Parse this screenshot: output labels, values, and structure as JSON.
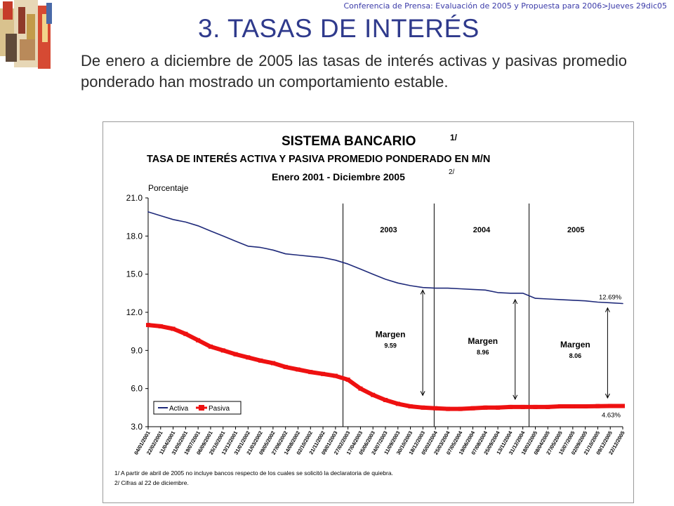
{
  "header": {
    "conference_note": "Conferencia de Prensa: Evaluación de 2005 y Propuesta para 2006>Jueves 29dic05"
  },
  "slide": {
    "title": "3. TASAS DE INTERÉS",
    "body": "De enero a diciembre de 2005 las tasas de interés activas y pasivas promedio ponderado han mostrado un comportamiento estable."
  },
  "colors": {
    "title": "#2f3a8c",
    "activa": "#1f2a7a",
    "pasiva": "#ee1111"
  },
  "chart_data": {
    "type": "line",
    "title": "SISTEMA BANCARIO",
    "title_note": "1/",
    "subtitle": "TASA DE INTERÉS ACTIVA Y PASIVA PROMEDIO PONDERADO EN M/N",
    "period": "Enero 2001 - Diciembre 2005",
    "period_note": "2/",
    "ylabel": "Porcentaje",
    "xlabel": "",
    "ylim": [
      3.0,
      21.0
    ],
    "yticks": [
      "3.0",
      "6.0",
      "9.0",
      "12.0",
      "15.0",
      "18.0",
      "21.0"
    ],
    "grid": false,
    "legend_position": "bottom-left",
    "x_ticks": [
      "04/01/2001",
      "22/02/2001",
      "11/04/2001",
      "31/05/2001",
      "19/07/2001",
      "06/09/2001",
      "25/10/2001",
      "13/12/2001",
      "31/01/2002",
      "21/03/2002",
      "09/05/2002",
      "27/06/2002",
      "14/08/2002",
      "02/10/2002",
      "21/11/2002",
      "09/01/2003",
      "27/02/2003",
      "17/04/2003",
      "05/06/2003",
      "24/07/2003",
      "11/09/2003",
      "30/10/2003",
      "18/12/2003",
      "05/02/2004",
      "25/03/2004",
      "07/05/2004",
      "19/06/2004",
      "07/08/2004",
      "25/09/2004",
      "13/11/2004",
      "31/12/2004",
      "18/02/2005",
      "08/04/2005",
      "27/05/2005",
      "15/07/2005",
      "02/09/2005",
      "21/10/2005",
      "09/12/2005",
      "22/12/2005"
    ],
    "series": [
      {
        "name": "Activa",
        "color": "#1f2a7a",
        "values": [
          19.9,
          19.6,
          19.3,
          19.1,
          18.8,
          18.4,
          18.0,
          17.6,
          17.2,
          17.1,
          16.9,
          16.6,
          16.5,
          16.4,
          16.3,
          16.1,
          15.8,
          15.4,
          15.0,
          14.6,
          14.3,
          14.1,
          13.95,
          13.9,
          13.9,
          13.85,
          13.8,
          13.75,
          13.55,
          13.5,
          13.5,
          13.1,
          13.05,
          13.0,
          12.95,
          12.9,
          12.8,
          12.75,
          12.69
        ]
      },
      {
        "name": "Pasiva",
        "color": "#ee1111",
        "values": [
          11.0,
          10.9,
          10.7,
          10.3,
          9.8,
          9.3,
          9.0,
          8.7,
          8.45,
          8.2,
          8.0,
          7.7,
          7.5,
          7.3,
          7.15,
          7.0,
          6.7,
          6.0,
          5.5,
          5.1,
          4.8,
          4.6,
          4.5,
          4.45,
          4.4,
          4.4,
          4.45,
          4.5,
          4.5,
          4.55,
          4.55,
          4.55,
          4.55,
          4.6,
          4.6,
          4.6,
          4.62,
          4.63,
          4.63
        ]
      }
    ],
    "year_labels": [
      "2003",
      "2004",
      "2005"
    ],
    "annotations": [
      {
        "label": "Margen",
        "value": "9.59"
      },
      {
        "label": "Margen",
        "value": "8.96"
      },
      {
        "label": "Margen",
        "value": "8.06"
      }
    ],
    "end_labels": {
      "activa": "12.69%",
      "pasiva": "4.63%"
    },
    "footnotes": [
      "1/ A partir de abril de 2005 no incluye bancos respecto de los cuales se solicitó la declaratoria de quiebra.",
      "2/ Cifras al 22 de diciembre."
    ]
  }
}
